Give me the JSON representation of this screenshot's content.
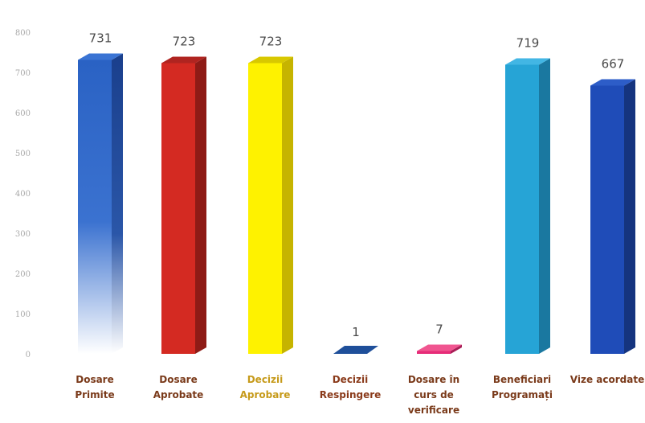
{
  "chart_data": {
    "type": "bar",
    "categories": [
      [
        "Dosare",
        "Primite"
      ],
      [
        "Dosare",
        "Aprobate"
      ],
      [
        "Decizii",
        "Aprobare"
      ],
      [
        "Decizii",
        "Respingere"
      ],
      [
        "Dosare în",
        "curs de",
        "verificare"
      ],
      [
        "Beneficiari",
        "Programați"
      ],
      [
        "Vize acordate"
      ]
    ],
    "values": [
      731,
      723,
      723,
      1,
      7,
      719,
      667
    ],
    "ylim": [
      0,
      800
    ],
    "yticks": [
      "0",
      "100",
      "200",
      "300",
      "400",
      "500",
      "600",
      "700",
      "800"
    ],
    "colors": [
      "#2a62c4",
      "#d42a22",
      "#fef200",
      "#1f4f9a",
      "#e62b78",
      "#26a4d6",
      "#1f4cb8"
    ],
    "side_colors": [
      "#1a3f8c",
      "#8e1b16",
      "#c6b400",
      "#163a74",
      "#a81d56",
      "#1a78a0",
      "#15347f"
    ],
    "top_colors": [
      "#3a74d4",
      "#b02420",
      "#d8c800",
      "#2a5fae",
      "#f05590",
      "#42b6e4",
      "#2d5dc8"
    ],
    "label_colors": [
      "#7a3a1a",
      "#7a3a1a",
      "#c69a1a",
      "#8a3a1a",
      "#7a3a1a",
      "#7a3a1a",
      "#7a3a1a"
    ],
    "value_label_colors": [
      "#4a4a4a",
      "#4a4a4a",
      "#4a4a4a",
      "#4a4a4a",
      "#c85a7a",
      "#4a4a4a",
      "#4a4a4a"
    ],
    "grid": false,
    "legend": "none"
  }
}
